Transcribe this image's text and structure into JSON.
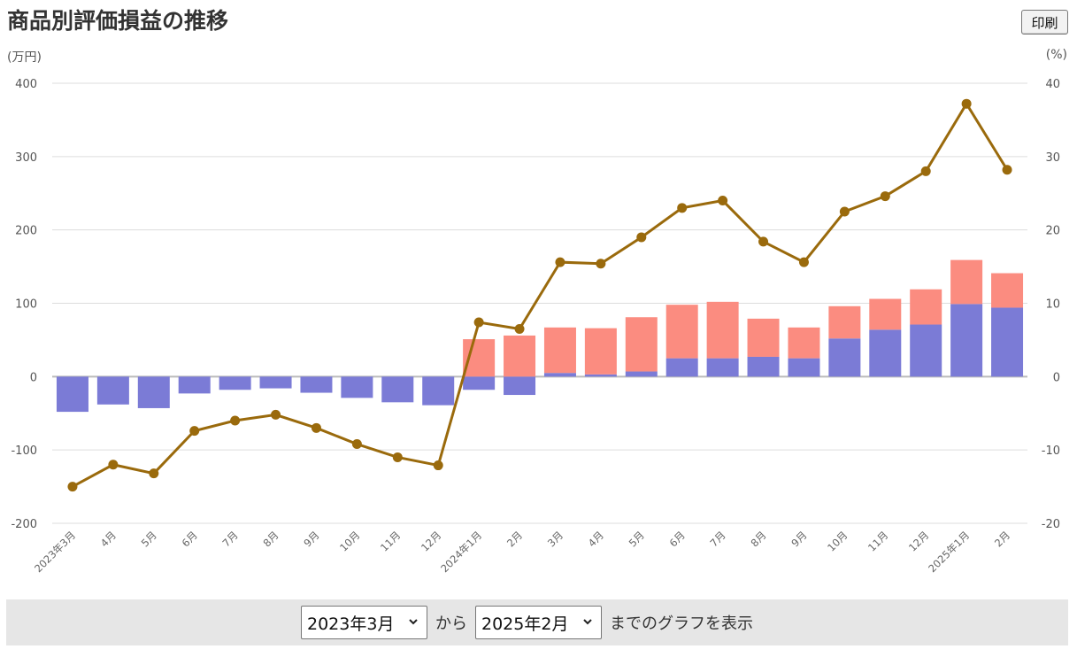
{
  "header": {
    "title": "商品別評価損益の推移",
    "print_label": "印刷"
  },
  "axes": {
    "left_unit": "(万円)",
    "right_unit": "(%)"
  },
  "colors": {
    "negative_bar": "#7b7bd6",
    "positive_base_bar": "#7b7bd6",
    "positive_top_bar": "#fb8c80",
    "line": "#9a6a0c",
    "grid": "#dddddd",
    "zero_line": "#bbbbbb"
  },
  "chart_data": {
    "type": "bar",
    "categories": [
      "2023年3月",
      "4月",
      "5月",
      "6月",
      "7月",
      "8月",
      "9月",
      "10月",
      "11月",
      "12月",
      "2024年1月",
      "2月",
      "3月",
      "4月",
      "5月",
      "6月",
      "7月",
      "8月",
      "9月",
      "10月",
      "11月",
      "12月",
      "2025年1月",
      "2月"
    ],
    "series": [
      {
        "values": [
          -48,
          -38,
          -43,
          -23,
          -18,
          -16,
          -22,
          -29,
          -35,
          -39,
          -18,
          -25,
          5,
          3,
          7,
          25,
          25,
          27,
          25,
          52,
          64,
          71,
          99,
          94
        ]
      },
      {
        "values": [
          0,
          0,
          0,
          0,
          0,
          0,
          0,
          0,
          0,
          0,
          51,
          56,
          62,
          63,
          74,
          73,
          77,
          52,
          42,
          44,
          42,
          48,
          60,
          47
        ]
      },
      {
        "type": "line",
        "axis": "right",
        "values": [
          -15,
          -12,
          -13.2,
          -7.4,
          -6,
          -5.2,
          -7,
          -9.2,
          -11,
          -12.1,
          7.4,
          6.5,
          15.6,
          15.4,
          19,
          23,
          24,
          18.4,
          15.6,
          22.5,
          24.6,
          28,
          37.2,
          28.2
        ]
      }
    ],
    "ylim": [
      -200,
      400
    ],
    "yticks": [
      "400",
      "300",
      "200",
      "100",
      "0",
      "-100",
      "-200"
    ],
    "y2lim": [
      -20,
      40
    ],
    "y2ticks": [
      "40",
      "30",
      "20",
      "10",
      "0",
      "-10",
      "-20"
    ],
    "grid": true,
    "legend": "none"
  },
  "controls": {
    "from_value": "2023年3月",
    "to_value": "2025年2月",
    "from_connector": "から",
    "suffix": "までのグラフを表示"
  }
}
